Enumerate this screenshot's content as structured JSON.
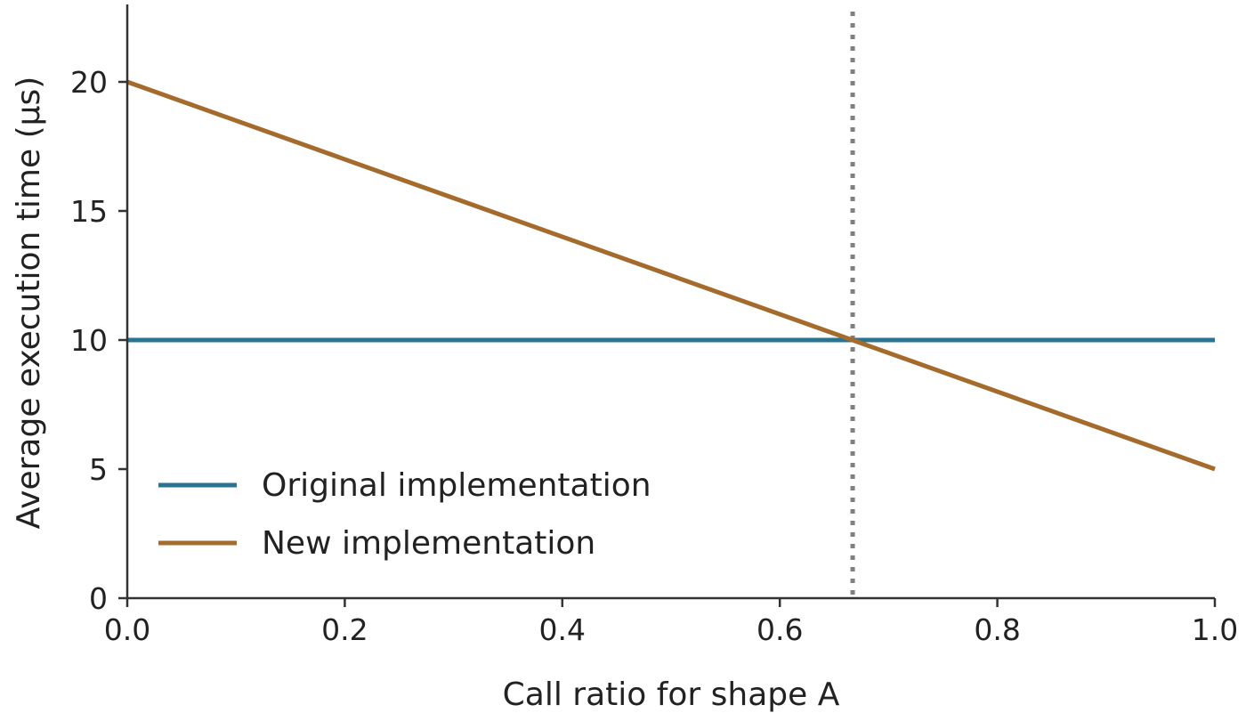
{
  "chart_data": {
    "type": "line",
    "title": "",
    "xlabel": "Call ratio for shape A",
    "ylabel": "Average execution time (μs)",
    "xlim": [
      0,
      1
    ],
    "ylim": [
      0,
      23
    ],
    "x_ticks": [
      "0.0",
      "0.2",
      "0.4",
      "0.6",
      "0.8",
      "1.0"
    ],
    "y_ticks": [
      "0",
      "5",
      "10",
      "15",
      "20"
    ],
    "grid": false,
    "legend_position": "lower-left",
    "series": [
      {
        "name": "Original implementation",
        "color": "#2a7391",
        "x": [
          0,
          1
        ],
        "y": [
          10,
          10
        ]
      },
      {
        "name": "New implementation",
        "color": "#a56b2c",
        "x": [
          0,
          1
        ],
        "y": [
          20,
          5
        ]
      }
    ],
    "reference_line": {
      "axis": "x",
      "value": 0.667,
      "style": "dotted",
      "color": "#808080"
    }
  }
}
